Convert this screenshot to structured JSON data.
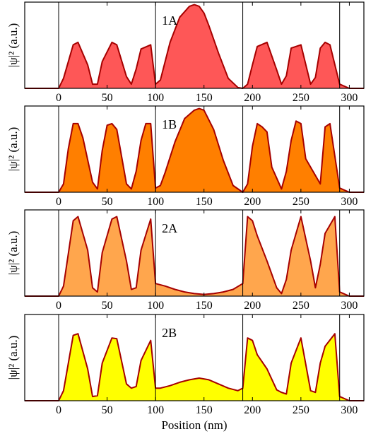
{
  "chart_data": [
    {
      "type": "area",
      "panel_label": "1A",
      "ylabel": "|ψ|² (a.u.)",
      "x": [
        -35,
        0,
        5,
        15,
        20,
        30,
        35,
        40,
        45,
        55,
        60,
        70,
        75,
        80,
        85,
        95,
        100,
        105,
        115,
        125,
        135,
        140,
        145,
        150,
        155,
        165,
        175,
        185,
        190,
        195,
        200,
        205,
        215,
        225,
        230,
        235,
        240,
        250,
        260,
        265,
        270,
        275,
        280,
        290,
        300,
        315
      ],
      "y": [
        0,
        0,
        0.12,
        0.52,
        0.55,
        0.28,
        0.05,
        0.05,
        0.32,
        0.55,
        0.52,
        0.14,
        0.05,
        0.23,
        0.47,
        0.52,
        0.05,
        0.1,
        0.55,
        0.85,
        0.98,
        1.0,
        0.98,
        0.9,
        0.75,
        0.42,
        0.12,
        0.01,
        0,
        0.05,
        0.28,
        0.5,
        0.55,
        0.22,
        0.05,
        0.15,
        0.48,
        0.52,
        0.05,
        0.13,
        0.48,
        0.55,
        0.52,
        0.05,
        0,
        0
      ],
      "fill": "#fe5757",
      "stroke": "#a60000",
      "xlim": [
        -35,
        315
      ],
      "ylim": [
        0,
        1.03
      ],
      "vlines": [
        0,
        100,
        190,
        290
      ],
      "xticks": [
        "0",
        "50",
        "100",
        "150",
        "200",
        "250",
        "300"
      ]
    },
    {
      "type": "area",
      "panel_label": "1B",
      "ylabel": "|ψ|² (a.u.)",
      "x": [
        -35,
        0,
        5,
        10,
        15,
        20,
        25,
        35,
        40,
        45,
        50,
        55,
        60,
        70,
        75,
        80,
        85,
        90,
        95,
        100,
        105,
        110,
        120,
        130,
        140,
        145,
        150,
        160,
        170,
        180,
        190,
        195,
        200,
        205,
        210,
        215,
        220,
        230,
        235,
        240,
        245,
        250,
        255,
        270,
        275,
        280,
        290,
        300,
        315
      ],
      "y": [
        0,
        0,
        0.1,
        0.52,
        0.82,
        0.82,
        0.65,
        0.12,
        0.04,
        0.5,
        0.8,
        0.82,
        0.75,
        0.1,
        0.04,
        0.25,
        0.62,
        0.82,
        0.82,
        0.05,
        0.08,
        0.24,
        0.6,
        0.88,
        0.98,
        1.0,
        0.98,
        0.75,
        0.38,
        0.08,
        0,
        0.1,
        0.55,
        0.82,
        0.78,
        0.72,
        0.3,
        0.04,
        0.25,
        0.62,
        0.85,
        0.82,
        0.4,
        0.1,
        0.78,
        0.82,
        0.05,
        0,
        0
      ],
      "fill": "#ff7f00",
      "stroke": "#a60000",
      "xlim": [
        -35,
        315
      ],
      "ylim": [
        0,
        1.03
      ],
      "vlines": [
        0,
        100,
        190,
        290
      ],
      "xticks": [
        "0",
        "50",
        "100",
        "150",
        "200",
        "250",
        "300"
      ]
    },
    {
      "type": "area",
      "panel_label": "2A",
      "ylabel": "|ψ|² (a.u.)",
      "x": [
        -35,
        0,
        5,
        15,
        20,
        30,
        35,
        40,
        45,
        55,
        60,
        70,
        75,
        80,
        85,
        95,
        100,
        110,
        120,
        130,
        140,
        150,
        160,
        170,
        180,
        190,
        195,
        200,
        205,
        215,
        225,
        230,
        235,
        240,
        250,
        260,
        265,
        270,
        275,
        285,
        290,
        300,
        315
      ],
      "y": [
        0,
        0,
        0.12,
        0.9,
        0.95,
        0.55,
        0.1,
        0.05,
        0.52,
        0.92,
        0.95,
        0.42,
        0.08,
        0.1,
        0.55,
        0.92,
        0.15,
        0.12,
        0.08,
        0.05,
        0.03,
        0.02,
        0.03,
        0.05,
        0.08,
        0.15,
        0.95,
        0.9,
        0.72,
        0.42,
        0.1,
        0.03,
        0.2,
        0.55,
        0.95,
        0.42,
        0.1,
        0.38,
        0.75,
        0.95,
        0.05,
        0,
        0
      ],
      "fill": "#ffa64d",
      "stroke": "#a60000",
      "xlim": [
        -35,
        315
      ],
      "ylim": [
        0,
        1.03
      ],
      "vlines": [
        0,
        100,
        190,
        290
      ],
      "xticks": [
        "0",
        "50",
        "100",
        "150",
        "200",
        "250",
        "300"
      ]
    },
    {
      "type": "area",
      "panel_label": "2B",
      "ylabel": "|ψ|² (a.u.)",
      "x": [
        -35,
        0,
        5,
        15,
        20,
        30,
        35,
        40,
        45,
        55,
        60,
        70,
        75,
        80,
        85,
        95,
        100,
        105,
        115,
        125,
        135,
        145,
        155,
        165,
        175,
        185,
        190,
        195,
        200,
        205,
        215,
        225,
        230,
        235,
        240,
        250,
        260,
        265,
        270,
        275,
        285,
        290,
        300,
        315
      ],
      "y": [
        0,
        0,
        0.12,
        0.78,
        0.8,
        0.38,
        0.05,
        0.06,
        0.45,
        0.75,
        0.74,
        0.2,
        0.15,
        0.17,
        0.48,
        0.72,
        0.15,
        0.15,
        0.18,
        0.22,
        0.25,
        0.27,
        0.25,
        0.2,
        0.15,
        0.12,
        0.15,
        0.75,
        0.72,
        0.55,
        0.38,
        0.13,
        0.1,
        0.08,
        0.45,
        0.75,
        0.12,
        0.1,
        0.45,
        0.65,
        0.8,
        0.05,
        0,
        0
      ],
      "fill": "#ffff00",
      "stroke": "#a60000",
      "xlim": [
        -35,
        315
      ],
      "ylim": [
        0,
        1.03
      ],
      "vlines": [
        0,
        100,
        190,
        290
      ],
      "xticks": [
        "0",
        "50",
        "100",
        "150",
        "200",
        "250",
        "300"
      ],
      "xlabel": "Position (nm)"
    }
  ]
}
